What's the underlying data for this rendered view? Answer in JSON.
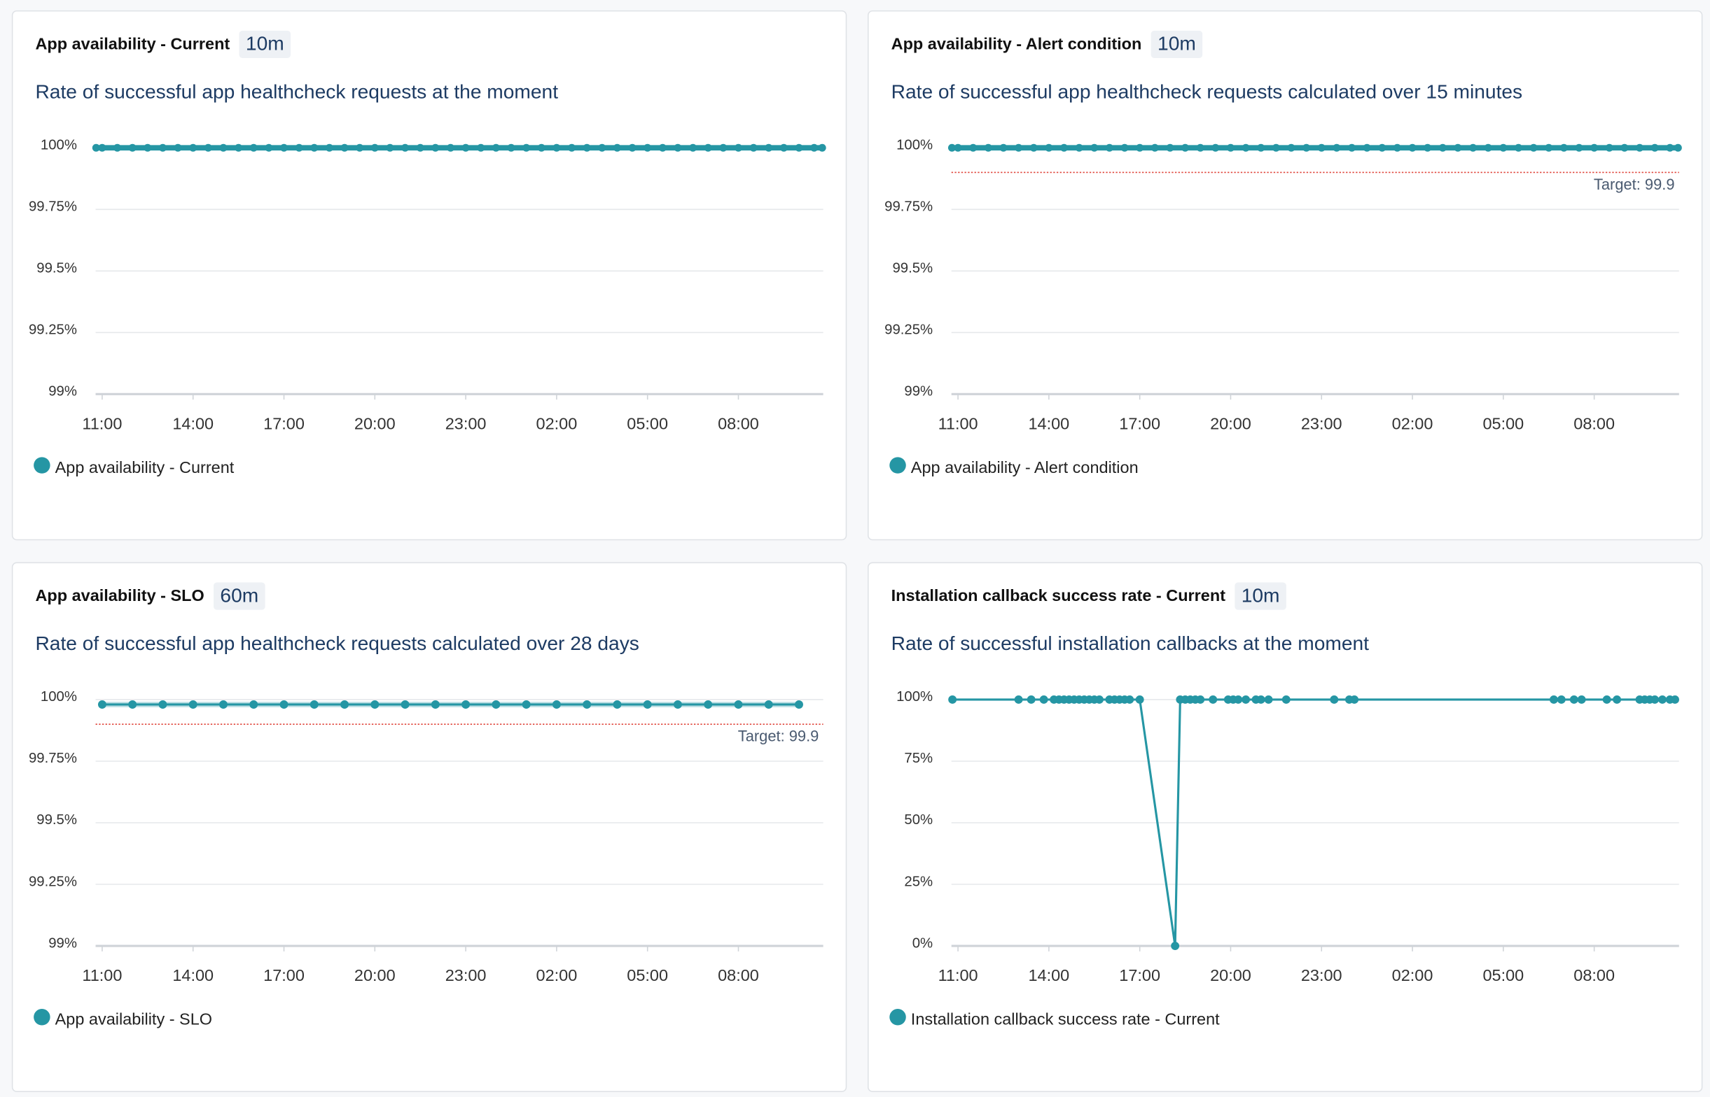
{
  "chart_data": [
    {
      "type": "line",
      "title": "App availability - Current",
      "badge": "10m",
      "subtitle": "Rate of successful app healthcheck requests at the moment",
      "x": [
        "10:48",
        "11:00",
        "11:30",
        "12:00",
        "12:30",
        "13:00",
        "13:30",
        "14:00",
        "14:30",
        "15:00",
        "15:30",
        "16:00",
        "16:30",
        "17:00",
        "17:30",
        "18:00",
        "18:30",
        "19:00",
        "19:30",
        "20:00",
        "20:30",
        "21:00",
        "21:30",
        "22:00",
        "22:30",
        "23:00",
        "23:30",
        "00:00",
        "00:30",
        "01:00",
        "01:30",
        "02:00",
        "02:30",
        "03:00",
        "03:30",
        "04:00",
        "04:30",
        "05:00",
        "05:30",
        "06:00",
        "06:30",
        "07:00",
        "07:30",
        "08:00",
        "08:30",
        "09:00",
        "09:30",
        "10:00",
        "10:30",
        "10:46"
      ],
      "series": [
        {
          "name": "App availability - Current",
          "color": "#2596a4",
          "values": [
            100,
            100,
            100,
            100,
            100,
            100,
            100,
            100,
            100,
            100,
            100,
            100,
            100,
            100,
            100,
            100,
            100,
            100,
            100,
            100,
            100,
            100,
            100,
            100,
            100,
            100,
            100,
            100,
            100,
            100,
            100,
            100,
            100,
            100,
            100,
            100,
            100,
            100,
            100,
            100,
            100,
            100,
            100,
            100,
            100,
            100,
            100,
            100,
            100,
            100
          ]
        }
      ],
      "xlim": [
        "10:47",
        "10:48"
      ],
      "xticks": [
        "11:00",
        "14:00",
        "17:00",
        "20:00",
        "23:00",
        "02:00",
        "05:00",
        "08:00"
      ],
      "ylim": [
        99,
        100
      ],
      "yticks": [
        {
          "value": 99,
          "label": "99%"
        },
        {
          "value": 99.25,
          "label": "99.25%"
        },
        {
          "value": 99.5,
          "label": "99.5%"
        },
        {
          "value": 99.75,
          "label": "99.75%"
        },
        {
          "value": 100,
          "label": "100%"
        }
      ],
      "grid": true
    },
    {
      "type": "line",
      "title": "App availability - Alert condition",
      "badge": "10m",
      "subtitle": "Rate of successful app healthcheck requests calculated over 15 minutes",
      "x": [
        "10:48",
        "11:00",
        "11:30",
        "12:00",
        "12:30",
        "13:00",
        "13:30",
        "14:00",
        "14:30",
        "15:00",
        "15:30",
        "16:00",
        "16:30",
        "17:00",
        "17:30",
        "18:00",
        "18:30",
        "19:00",
        "19:30",
        "20:00",
        "20:30",
        "21:00",
        "21:30",
        "22:00",
        "22:30",
        "23:00",
        "23:30",
        "00:00",
        "00:30",
        "01:00",
        "01:30",
        "02:00",
        "02:30",
        "03:00",
        "03:30",
        "04:00",
        "04:30",
        "05:00",
        "05:30",
        "06:00",
        "06:30",
        "07:00",
        "07:30",
        "08:00",
        "08:30",
        "09:00",
        "09:30",
        "10:00",
        "10:30",
        "10:46"
      ],
      "series": [
        {
          "name": "App availability - Alert condition",
          "color": "#2596a4",
          "values": [
            100,
            100,
            100,
            100,
            100,
            100,
            100,
            100,
            100,
            100,
            100,
            100,
            100,
            100,
            100,
            100,
            100,
            100,
            100,
            100,
            100,
            100,
            100,
            100,
            100,
            100,
            100,
            100,
            100,
            100,
            100,
            100,
            100,
            100,
            100,
            100,
            100,
            100,
            100,
            100,
            100,
            100,
            100,
            100,
            100,
            100,
            100,
            100,
            100,
            100
          ]
        }
      ],
      "threshold": {
        "value": 99.9,
        "label": "Target: 99.9",
        "color": "#e0463c"
      },
      "xlim": [
        "10:47",
        "10:48"
      ],
      "xticks": [
        "11:00",
        "14:00",
        "17:00",
        "20:00",
        "23:00",
        "02:00",
        "05:00",
        "08:00"
      ],
      "ylim": [
        99,
        100
      ],
      "yticks": [
        {
          "value": 99,
          "label": "99%"
        },
        {
          "value": 99.25,
          "label": "99.25%"
        },
        {
          "value": 99.5,
          "label": "99.5%"
        },
        {
          "value": 99.75,
          "label": "99.75%"
        },
        {
          "value": 100,
          "label": "100%"
        }
      ],
      "grid": true
    },
    {
      "type": "line",
      "title": "App availability - SLO",
      "badge": "60m",
      "subtitle": "Rate of successful app healthcheck requests calculated over 28 days",
      "x": [
        "11:00",
        "12:00",
        "13:00",
        "14:00",
        "15:00",
        "16:00",
        "17:00",
        "18:00",
        "19:00",
        "20:00",
        "21:00",
        "22:00",
        "23:00",
        "00:00",
        "01:00",
        "02:00",
        "03:00",
        "04:00",
        "05:00",
        "06:00",
        "07:00",
        "08:00",
        "09:00",
        "10:00"
      ],
      "series": [
        {
          "name": "App availability - SLO",
          "color": "#2596a4",
          "values": [
            99.98,
            99.98,
            99.98,
            99.98,
            99.98,
            99.98,
            99.98,
            99.98,
            99.98,
            99.98,
            99.98,
            99.98,
            99.98,
            99.98,
            99.98,
            99.98,
            99.98,
            99.98,
            99.98,
            99.98,
            99.98,
            99.98,
            99.98,
            99.98
          ]
        }
      ],
      "threshold": {
        "value": 99.9,
        "label": "Target: 99.9",
        "color": "#e0463c"
      },
      "xlim": [
        "10:47",
        "10:48"
      ],
      "xticks": [
        "11:00",
        "14:00",
        "17:00",
        "20:00",
        "23:00",
        "02:00",
        "05:00",
        "08:00"
      ],
      "ylim": [
        99,
        100
      ],
      "yticks": [
        {
          "value": 99,
          "label": "99%"
        },
        {
          "value": 99.25,
          "label": "99.25%"
        },
        {
          "value": 99.5,
          "label": "99.5%"
        },
        {
          "value": 99.75,
          "label": "99.75%"
        },
        {
          "value": 100,
          "label": "100%"
        }
      ],
      "grid": true
    },
    {
      "type": "line",
      "title": "Installation callback success rate - Current",
      "badge": "10m",
      "subtitle": "Rate of successful installation callbacks at the moment",
      "x": [
        "10:49",
        "13:00",
        "13:25",
        "13:50",
        "14:10",
        "14:20",
        "14:30",
        "14:40",
        "14:50",
        "15:00",
        "15:10",
        "15:20",
        "15:30",
        "15:40",
        "16:00",
        "16:10",
        "16:20",
        "16:30",
        "16:40",
        "17:00",
        "18:10",
        "18:20",
        "18:30",
        "18:40",
        "18:50",
        "19:00",
        "19:25",
        "19:55",
        "20:05",
        "20:15",
        "20:30",
        "20:50",
        "21:00",
        "21:15",
        "21:50",
        "23:25",
        "23:55",
        "00:05",
        "06:40",
        "06:55",
        "07:20",
        "07:35",
        "08:25",
        "08:45",
        "09:30",
        "09:40",
        "09:50",
        "10:00",
        "10:15",
        "10:30",
        "10:40"
      ],
      "series": [
        {
          "name": "Installation callback success rate - Current",
          "color": "#2596a4",
          "values": [
            100,
            100,
            100,
            100,
            100,
            100,
            100,
            100,
            100,
            100,
            100,
            100,
            100,
            100,
            100,
            100,
            100,
            100,
            100,
            100,
            0,
            100,
            100,
            100,
            100,
            100,
            100,
            100,
            100,
            100,
            100,
            100,
            100,
            100,
            100,
            100,
            100,
            100,
            100,
            100,
            100,
            100,
            100,
            100,
            100,
            100,
            100,
            100,
            100,
            100,
            100
          ]
        }
      ],
      "xlim": [
        "10:47",
        "10:48"
      ],
      "xticks": [
        "11:00",
        "14:00",
        "17:00",
        "20:00",
        "23:00",
        "02:00",
        "05:00",
        "08:00"
      ],
      "ylim": [
        0,
        100
      ],
      "yticks": [
        {
          "value": 0,
          "label": "0%"
        },
        {
          "value": 25,
          "label": "25%"
        },
        {
          "value": 50,
          "label": "50%"
        },
        {
          "value": 75,
          "label": "75%"
        },
        {
          "value": 100,
          "label": "100%"
        }
      ],
      "grid": true
    }
  ]
}
